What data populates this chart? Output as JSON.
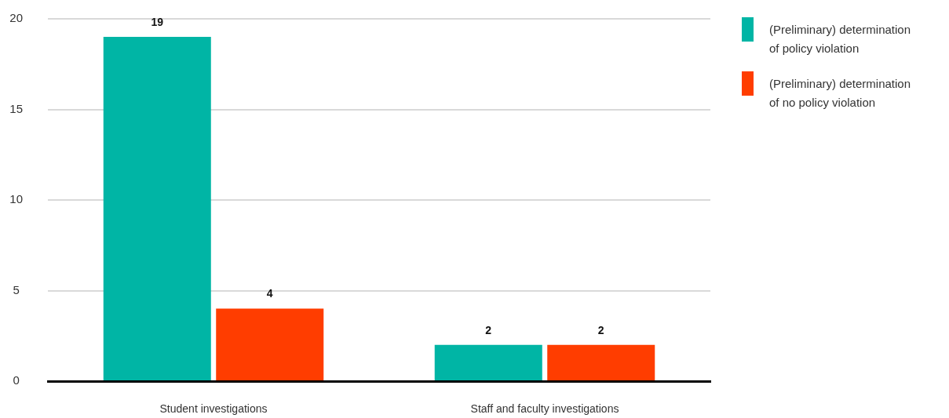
{
  "chart_data": {
    "type": "bar",
    "categories": [
      "Student investigations",
      "Staff and faculty investigations"
    ],
    "series": [
      {
        "name": "(Preliminary) determination of policy violation",
        "color": "#00b5a5",
        "values": [
          19,
          2
        ]
      },
      {
        "name": "(Preliminary) determination of no policy violation",
        "color": "#ff3d00",
        "values": [
          4,
          2
        ]
      }
    ],
    "ylim": [
      0,
      20
    ],
    "yticks": [
      0,
      5,
      10,
      15,
      20
    ],
    "grid": "y",
    "legend": "top right",
    "data_labels": true
  }
}
